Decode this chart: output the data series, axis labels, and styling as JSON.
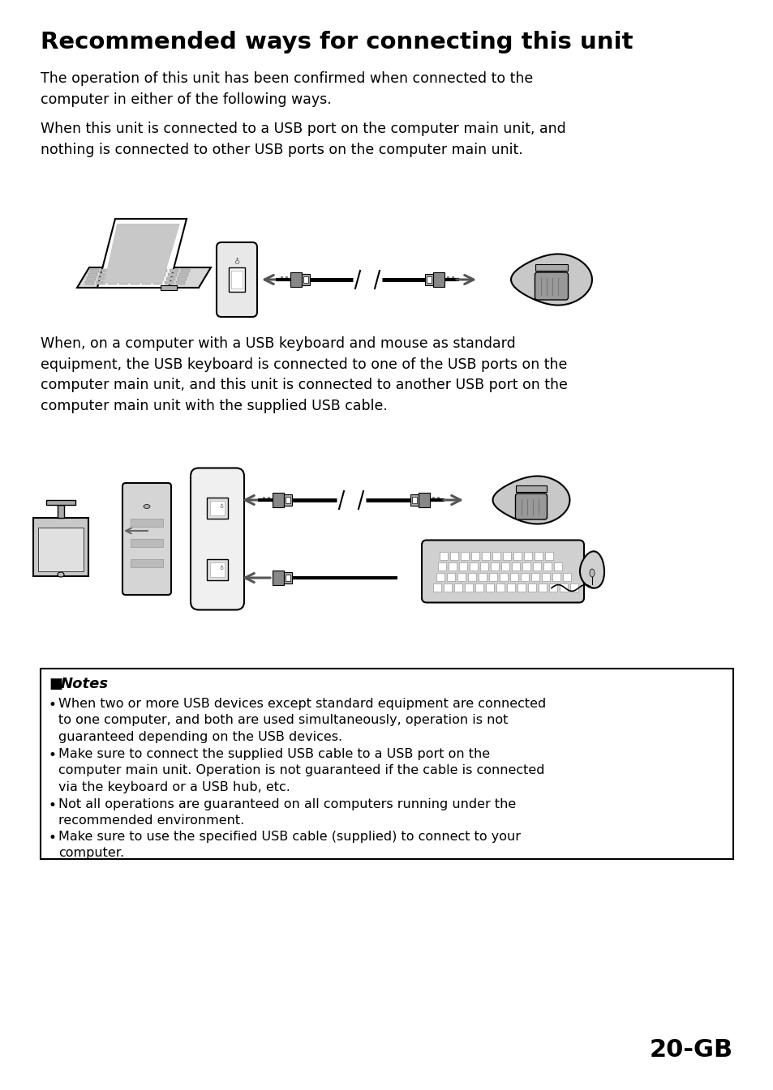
{
  "title": "Recommended ways for connecting this unit",
  "para1": "The operation of this unit has been confirmed when connected to the\ncomputer in either of the following ways.",
  "para2": "When this unit is connected to a USB port on the computer main unit, and\nnothing is connected to other USB ports on the computer main unit.",
  "para3": "When, on a computer with a USB keyboard and mouse as standard\nequipment, the USB keyboard is connected to one of the USB ports on the\ncomputer main unit, and this unit is connected to another USB port on the\ncomputer main unit with the supplied USB cable.",
  "notes_title": "Notes",
  "notes": [
    "When two or more USB devices except standard equipment are connected\nto one computer, and both are used simultaneously, operation is not\nguaranteed depending on the USB devices.",
    "Make sure to connect the supplied USB cable to a USB port on the\ncomputer main unit. Operation is not guaranteed if the cable is connected\nvia the keyboard or a USB hub, etc.",
    "Not all operations are guaranteed on all computers running under the\nrecommended environment.",
    "Make sure to use the specified USB cable (supplied) to connect to your\ncomputer."
  ],
  "page_num": "20-GB",
  "bg_color": "#ffffff",
  "text_color": "#000000"
}
